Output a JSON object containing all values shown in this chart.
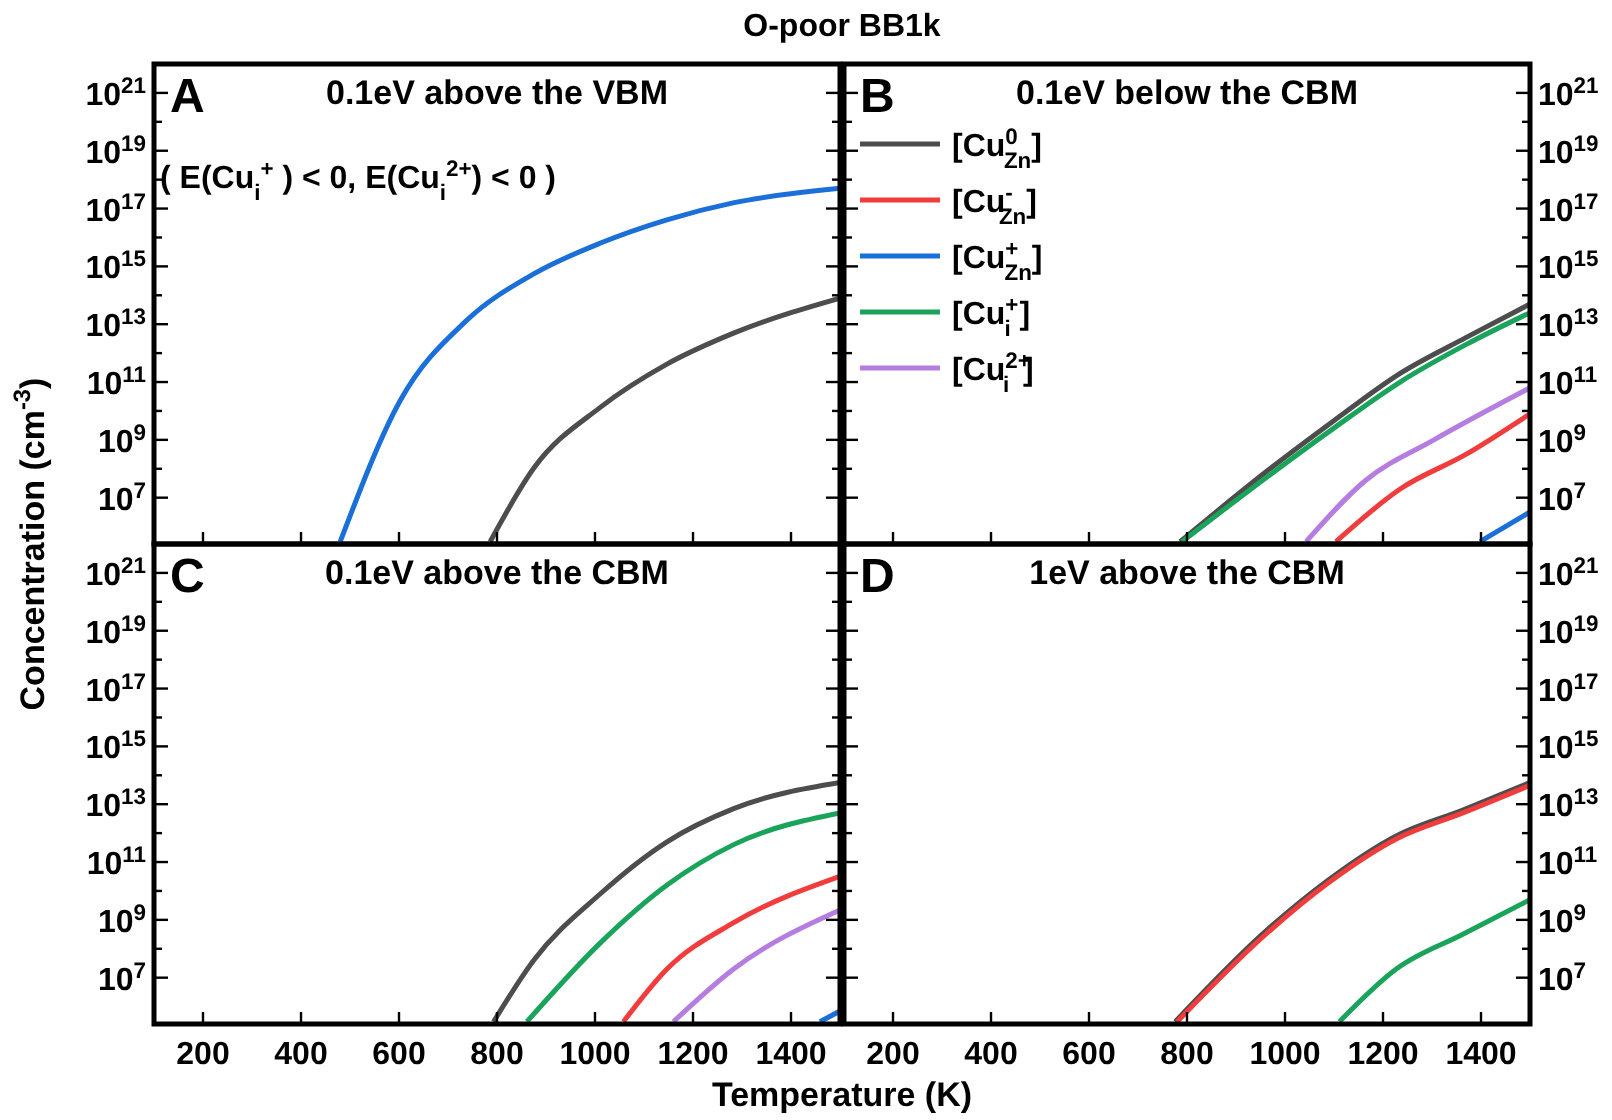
{
  "chart_data": [
    {
      "type": "line",
      "title": "O-poor BB1k",
      "ylabel": "Concentration (cm$^{-3}$)",
      "annotations": [
        "A",
        "0.1eV above the VBM",
        "( E(Cu$_{i}$$^{+}$ ) < 0, E(Cu$_{i}$$^{2+}$) < 0 )"
      ],
      "xlim": [
        100,
        1500
      ],
      "ylim": [
        250000,
        1e+22
      ],
      "log": "y",
      "tick_labels": "y",
      "xticks": [
        {
          "value": 200,
          "label": null
        },
        {
          "value": 400,
          "label": null
        },
        {
          "value": 600,
          "label": null
        },
        {
          "value": 800,
          "label": null
        },
        {
          "value": 1000,
          "label": null
        },
        {
          "value": 1200,
          "label": null
        },
        {
          "value": 1400,
          "label": null
        }
      ],
      "yticks": [
        {
          "value": 10000000.0,
          "label": "10$^{7}$"
        },
        {
          "value": 100000000.0,
          "label": null
        },
        {
          "value": 1000000000.0,
          "label": "10$^{9}$"
        },
        {
          "value": 10000000000.0,
          "label": null
        },
        {
          "value": 100000000000.0,
          "label": "10$^{11}$"
        },
        {
          "value": 1000000000000.0,
          "label": null
        },
        {
          "value": 10000000000000.0,
          "label": "10$^{13}$"
        },
        {
          "value": 100000000000000.0,
          "label": null
        },
        {
          "value": 1000000000000000.0,
          "label": "10$^{15}$"
        },
        {
          "value": 1e+16,
          "label": null
        },
        {
          "value": 1e+17,
          "label": "10$^{17}$"
        },
        {
          "value": 1e+18,
          "label": null
        },
        {
          "value": 1e+19,
          "label": "10$^{19}$"
        },
        {
          "value": 1e+20,
          "label": null
        },
        {
          "value": 1e+21,
          "label": "10$^{21}$"
        }
      ],
      "series": [
        {
          "color": "#4d4d4d",
          "x": [
            786,
            876,
            1010,
            1145,
            1284,
            1500
          ],
          "values": [
            300000.0,
            110000000.0,
            13000000000.0,
            400000000000.0,
            5000000000000.0,
            80000000000000.0
          ]
        },
        {
          "color": "#1a6fd9",
          "x": [
            480,
            602,
            737,
            876,
            1010,
            1145,
            1284,
            1500
          ],
          "values": [
            300000.0,
            22000000000.0,
            13000000000000.0,
            560000000000000.0,
            6300000000000000.0,
            4e+16,
            1.6e+17,
            5e+17
          ]
        }
      ]
    },
    {
      "type": "line",
      "annotations": [
        "B",
        "0.1eV below the CBM"
      ],
      "xlim": [
        100,
        1500
      ],
      "ylim": [
        250000,
        1e+22
      ],
      "log": "y",
      "tick_labels": "y",
      "legend": "top left",
      "xticks": [
        {
          "value": 200,
          "label": null
        },
        {
          "value": 400,
          "label": null
        },
        {
          "value": 600,
          "label": null
        },
        {
          "value": 800,
          "label": null
        },
        {
          "value": 1000,
          "label": null
        },
        {
          "value": 1200,
          "label": null
        },
        {
          "value": 1400,
          "label": null
        }
      ],
      "yticks": [
        {
          "value": 10000000.0,
          "label": "10$^{7}$"
        },
        {
          "value": 100000000.0,
          "label": null
        },
        {
          "value": 1000000000.0,
          "label": "10$^{9}$"
        },
        {
          "value": 10000000000.0,
          "label": null
        },
        {
          "value": 100000000000.0,
          "label": "10$^{11}$"
        },
        {
          "value": 1000000000000.0,
          "label": null
        },
        {
          "value": 10000000000000.0,
          "label": "10$^{13}$"
        },
        {
          "value": 100000000000000.0,
          "label": null
        },
        {
          "value": 1000000000000000.0,
          "label": "10$^{15}$"
        },
        {
          "value": 1e+16,
          "label": null
        },
        {
          "value": 1e+17,
          "label": "10$^{17}$"
        },
        {
          "value": 1e+18,
          "label": null
        },
        {
          "value": 1e+19,
          "label": "10$^{19}$"
        },
        {
          "value": 1e+20,
          "label": null
        },
        {
          "value": 1e+21,
          "label": "10$^{21}$"
        }
      ],
      "series": [
        {
          "name": "[Cu$^{0}$$_{Zn}$]",
          "color": "#4d4d4d",
          "x": [
            786,
            962,
            1099,
            1235,
            1370,
            1500
          ],
          "values": [
            300000.0,
            80000000.0,
            4500000000.0,
            200000000000.0,
            3500000000000.0,
            50000000000000.0
          ]
        },
        {
          "name": "[Cu$^{-}$$_{Zn}$]",
          "color": "#f03c3c",
          "x": [
            1104,
            1235,
            1370,
            1500
          ],
          "values": [
            300000.0,
            20000000.0,
            320000000.0,
            8000000000.0
          ]
        },
        {
          "name": "[Cu$^{+}$$_{Zn}$]",
          "color": "#1a6fd9",
          "x": [
            1398,
            1500
          ],
          "values": [
            300000.0,
            3200000.0
          ]
        },
        {
          "name": "[Cu$^{+}$$_{i}$ ]",
          "color": "#1aa35a",
          "x": [
            790,
            962,
            1099,
            1235,
            1370,
            1500
          ],
          "values": [
            300000.0,
            50000000.0,
            2500000000.0,
            100000000000.0,
            2000000000000.0,
            25000000000000.0
          ]
        },
        {
          "name": "[Cu$^{2+}$$_{i}$]",
          "color": "#b57de0",
          "x": [
            1043,
            1165,
            1304,
            1500
          ],
          "values": [
            300000.0,
            40000000.0,
            1000000000.0,
            63000000000.0
          ]
        }
      ]
    },
    {
      "type": "line",
      "xlabel": "Temperature (K)",
      "annotations": [
        "C",
        "0.1eV above the CBM"
      ],
      "xlim": [
        100,
        1500
      ],
      "ylim": [
        250000,
        1e+22
      ],
      "log": "y",
      "xticks": [
        200,
        400,
        600,
        800,
        1000,
        1200,
        1400
      ],
      "yticks": [
        {
          "value": 10000000.0,
          "label": "10$^{7}$"
        },
        {
          "value": 100000000.0,
          "label": null
        },
        {
          "value": 1000000000.0,
          "label": "10$^{9}$"
        },
        {
          "value": 10000000000.0,
          "label": null
        },
        {
          "value": 100000000000.0,
          "label": "10$^{11}$"
        },
        {
          "value": 1000000000000.0,
          "label": null
        },
        {
          "value": 10000000000000.0,
          "label": "10$^{13}$"
        },
        {
          "value": 100000000000000.0,
          "label": null
        },
        {
          "value": 1000000000000000.0,
          "label": "10$^{15}$"
        },
        {
          "value": 1e+16,
          "label": null
        },
        {
          "value": 1e+17,
          "label": "10$^{17}$"
        },
        {
          "value": 1e+18,
          "label": null
        },
        {
          "value": 1e+19,
          "label": "10$^{19}$"
        },
        {
          "value": 1e+20,
          "label": null
        },
        {
          "value": 1e+21,
          "label": "10$^{21}$"
        }
      ],
      "series": [
        {
          "color": "#4d4d4d",
          "x": [
            793,
            875,
            1011,
            1147,
            1283,
            1500
          ],
          "values": [
            300000.0,
            40000000.0,
            8000000000.0,
            500000000000.0,
            7000000000000.0,
            56000000000000.0
          ]
        },
        {
          "color": "#f03c3c",
          "x": [
            1058,
            1147,
            1283,
            1500
          ],
          "values": [
            300000.0,
            20000000.0,
            800000000.0,
            32000000000.0
          ]
        },
        {
          "color": "#1a6fd9",
          "x": [
            1459,
            1500
          ],
          "values": [
            300000.0,
            700000.0
          ]
        },
        {
          "color": "#1aa35a",
          "x": [
            861,
            1011,
            1147,
            1283,
            1500
          ],
          "values": [
            300000.0,
            160000000.0,
            16000000000.0,
            400000000000.0,
            5000000000000.0
          ]
        },
        {
          "color": "#b57de0",
          "x": [
            1160,
            1283,
            1500
          ],
          "values": [
            300000.0,
            20000000.0,
            2200000000.0
          ]
        }
      ]
    },
    {
      "type": "line",
      "annotations": [
        "D",
        "1eV above the CBM"
      ],
      "xlim": [
        100,
        1500
      ],
      "ylim": [
        250000,
        1e+22
      ],
      "log": "y",
      "xticks": [
        200,
        400,
        600,
        800,
        1000,
        1200,
        1400
      ],
      "yticks": [
        {
          "value": 10000000.0,
          "label": "10$^{7}$"
        },
        {
          "value": 100000000.0,
          "label": null
        },
        {
          "value": 1000000000.0,
          "label": "10$^{9}$"
        },
        {
          "value": 10000000000.0,
          "label": null
        },
        {
          "value": 100000000000.0,
          "label": "10$^{11}$"
        },
        {
          "value": 1000000000000.0,
          "label": null
        },
        {
          "value": 10000000000000.0,
          "label": "10$^{13}$"
        },
        {
          "value": 100000000000000.0,
          "label": null
        },
        {
          "value": 1000000000000000.0,
          "label": "10$^{15}$"
        },
        {
          "value": 1e+16,
          "label": null
        },
        {
          "value": 1e+17,
          "label": "10$^{17}$"
        },
        {
          "value": 1e+18,
          "label": null
        },
        {
          "value": 1e+19,
          "label": "10$^{19}$"
        },
        {
          "value": 1e+20,
          "label": null
        },
        {
          "value": 1e+21,
          "label": "10$^{21}$"
        }
      ],
      "series": [
        {
          "color": "#4d4d4d",
          "x": [
            776,
            954,
            1090,
            1227,
            1363,
            1500
          ],
          "values": [
            300000.0,
            320000000.0,
            25000000000.0,
            800000000000.0,
            6300000000000.0,
            56000000000000.0
          ]
        },
        {
          "color": "#f03c3c",
          "x": [
            780,
            954,
            1090,
            1227,
            1363,
            1500
          ],
          "values": [
            300000.0,
            250000000.0,
            20000000000.0,
            630000000000.0,
            5000000000000.0,
            45000000000000.0
          ]
        },
        {
          "color": "#1aa35a",
          "x": [
            1111,
            1227,
            1363,
            1500
          ],
          "values": [
            300000.0,
            20000000.0,
            320000000.0,
            5000000000.0
          ]
        }
      ]
    }
  ]
}
